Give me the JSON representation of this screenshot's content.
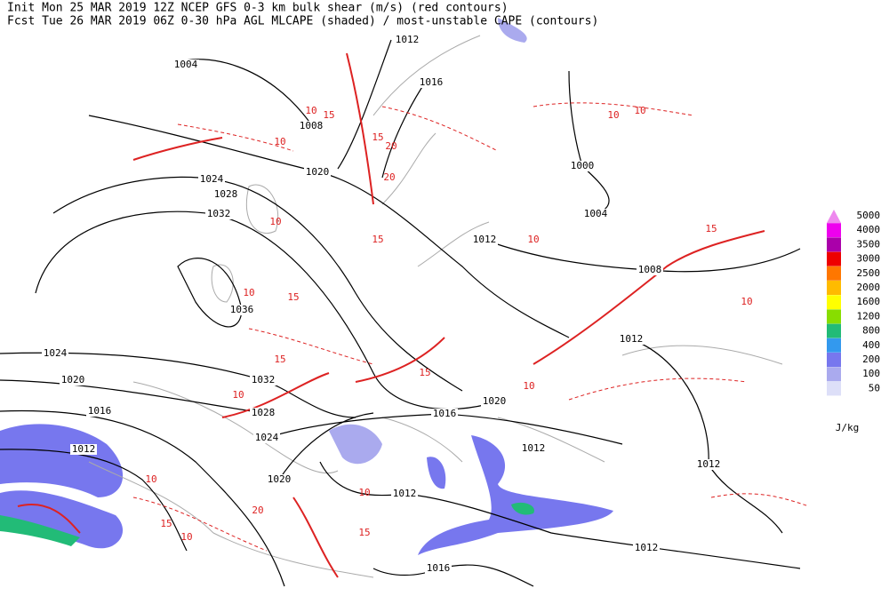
{
  "header": {
    "line1": "Init  Mon 25 MAR 2019 12Z  NCEP GFS 0-3 km bulk shear (m/s) (red contours)",
    "line2": "Fcst Tue 26 MAR 2019 06Z  0-30 hPa AGL MLCAPE (shaded) / most-unstable CAPE (contours)"
  },
  "isobar_labels": [
    "1012",
    "1004",
    "1016",
    "1008",
    "1000",
    "1020",
    "1024",
    "1028",
    "1004",
    "1032",
    "1012",
    "1008",
    "1036",
    "1012",
    "1024",
    "1020",
    "1032",
    "1020",
    "1016",
    "1028",
    "1016",
    "1024",
    "1012",
    "1012",
    "1012",
    "1020",
    "1012",
    "1012",
    "1016"
  ],
  "shear_labels": [
    "10",
    "15",
    "10",
    "20",
    "15",
    "10",
    "10",
    "15",
    "20",
    "10",
    "15",
    "10",
    "15",
    "10",
    "15",
    "10",
    "10",
    "15",
    "10",
    "15",
    "10",
    "20",
    "10",
    "15",
    "10"
  ],
  "legend": {
    "items": [
      {
        "label": "5000",
        "color": "#ee88ee"
      },
      {
        "label": "4000",
        "color": "#ee00ee"
      },
      {
        "label": "3500",
        "color": "#aa00aa"
      },
      {
        "label": "3000",
        "color": "#ee0000"
      },
      {
        "label": "2500",
        "color": "#ff7700"
      },
      {
        "label": "2000",
        "color": "#ffbb00"
      },
      {
        "label": "1600",
        "color": "#ffff00"
      },
      {
        "label": "1200",
        "color": "#88dd00"
      },
      {
        "label": "800",
        "color": "#22bb77"
      },
      {
        "label": "400",
        "color": "#3399ee"
      },
      {
        "label": "200",
        "color": "#7777ee"
      },
      {
        "label": "100",
        "color": "#aaaaee"
      },
      {
        "label": "50",
        "color": "#dddff8"
      }
    ],
    "unit": "J/kg"
  }
}
